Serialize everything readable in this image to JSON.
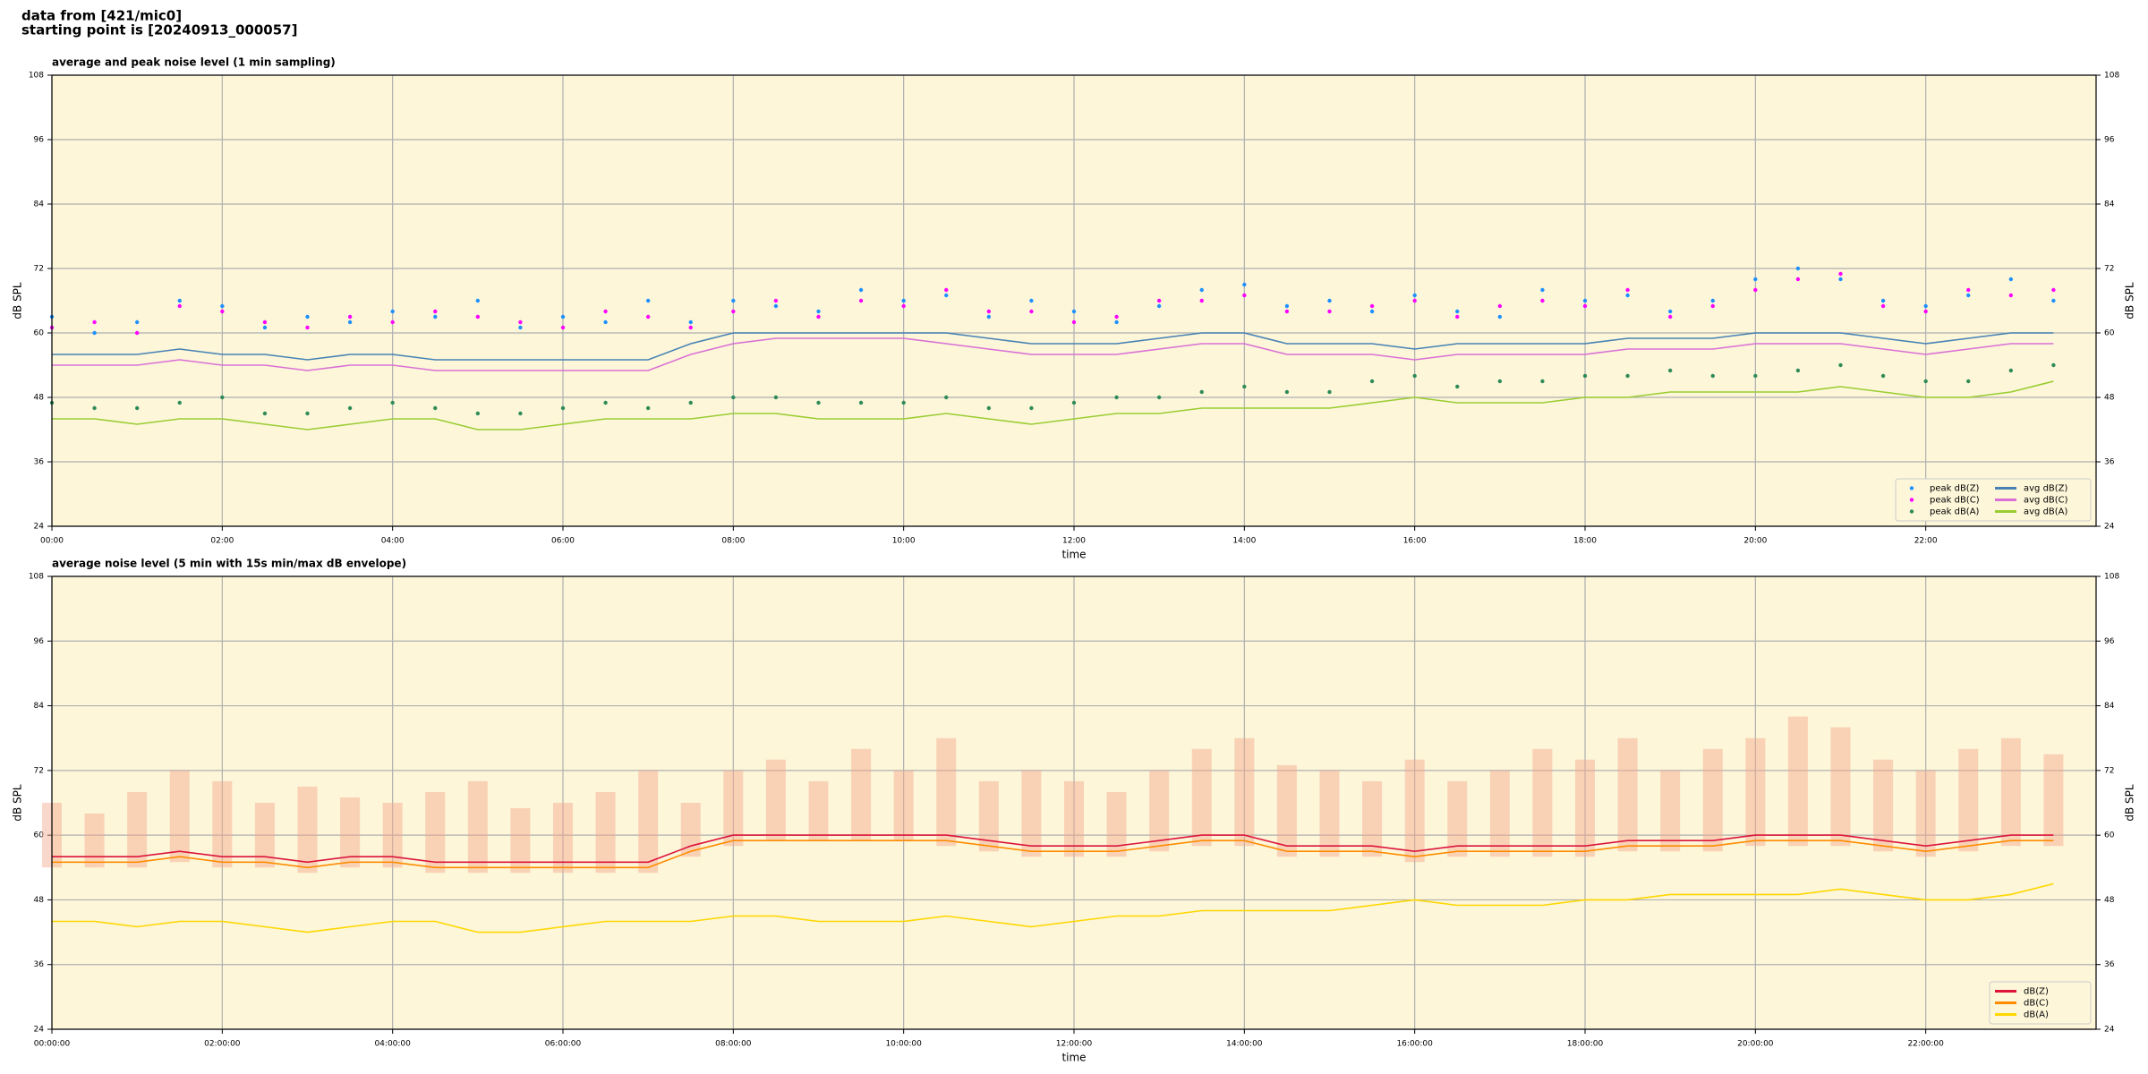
{
  "header": {
    "lines": [
      "data from [421/mic0]",
      "starting point is [20240913_000057]"
    ]
  },
  "chart_data": [
    {
      "type": "line",
      "title": "average and peak noise level (1 min sampling)",
      "xlabel": "time",
      "ylabel": "dB SPL",
      "xlim": [
        0,
        24
      ],
      "ylim": [
        24,
        108
      ],
      "xticks": [
        {
          "value": 0,
          "label": "00:00"
        },
        {
          "value": 2,
          "label": "02:00"
        },
        {
          "value": 4,
          "label": "04:00"
        },
        {
          "value": 6,
          "label": "06:00"
        },
        {
          "value": 8,
          "label": "08:00"
        },
        {
          "value": 10,
          "label": "10:00"
        },
        {
          "value": 12,
          "label": "12:00"
        },
        {
          "value": 14,
          "label": "14:00"
        },
        {
          "value": 16,
          "label": "16:00"
        },
        {
          "value": 18,
          "label": "18:00"
        },
        {
          "value": 20,
          "label": "20:00"
        },
        {
          "value": 22,
          "label": "22:00"
        }
      ],
      "yticks": [
        24,
        36,
        48,
        60,
        72,
        84,
        96,
        108
      ],
      "grid": true,
      "legend": "lower right",
      "legend_columns": 2,
      "background": "#fdf6d9",
      "x": [
        0,
        0.5,
        1,
        1.5,
        2,
        2.5,
        3,
        3.5,
        4,
        4.5,
        5,
        5.5,
        6,
        6.5,
        7,
        7.5,
        8,
        8.5,
        9,
        9.5,
        10,
        10.5,
        11,
        11.5,
        12,
        12.5,
        13,
        13.5,
        14,
        14.5,
        15,
        15.5,
        16,
        16.5,
        17,
        17.5,
        18,
        18.5,
        19,
        19.5,
        20,
        20.5,
        21,
        21.5,
        22,
        22.5,
        23,
        23.5
      ],
      "series": [
        {
          "name": "peak dB(Z)",
          "style": "marker",
          "color": "#1e90ff",
          "values": [
            63,
            60,
            62,
            66,
            65,
            61,
            63,
            62,
            64,
            63,
            66,
            61,
            63,
            62,
            66,
            62,
            66,
            65,
            64,
            68,
            66,
            67,
            63,
            66,
            64,
            62,
            65,
            68,
            69,
            65,
            66,
            64,
            67,
            64,
            63,
            68,
            66,
            67,
            64,
            66,
            70,
            72,
            70,
            66,
            65,
            67,
            70,
            66
          ]
        },
        {
          "name": "peak dB(C)",
          "style": "marker",
          "color": "#ff00ff",
          "values": [
            61,
            62,
            60,
            65,
            64,
            62,
            61,
            63,
            62,
            64,
            63,
            62,
            61,
            64,
            63,
            61,
            64,
            66,
            63,
            66,
            65,
            68,
            64,
            64,
            62,
            63,
            66,
            66,
            67,
            64,
            64,
            65,
            66,
            63,
            65,
            66,
            65,
            68,
            63,
            65,
            68,
            70,
            71,
            65,
            64,
            68,
            67,
            68
          ]
        },
        {
          "name": "peak dB(A)",
          "style": "marker",
          "color": "#2e8b57",
          "values": [
            47,
            46,
            46,
            47,
            48,
            45,
            45,
            46,
            47,
            46,
            45,
            45,
            46,
            47,
            46,
            47,
            48,
            48,
            47,
            47,
            47,
            48,
            46,
            46,
            47,
            48,
            48,
            49,
            50,
            49,
            49,
            51,
            52,
            50,
            51,
            51,
            52,
            52,
            53,
            52,
            52,
            53,
            54,
            52,
            51,
            51,
            53,
            54
          ]
        },
        {
          "name": "avg dB(Z)",
          "style": "line",
          "color": "#4682b4",
          "values": [
            56,
            56,
            56,
            57,
            56,
            56,
            55,
            56,
            56,
            55,
            55,
            55,
            55,
            55,
            55,
            58,
            60,
            60,
            60,
            60,
            60,
            60,
            59,
            58,
            58,
            58,
            59,
            60,
            60,
            58,
            58,
            58,
            57,
            58,
            58,
            58,
            58,
            59,
            59,
            59,
            60,
            60,
            60,
            59,
            58,
            59,
            60,
            60
          ]
        },
        {
          "name": "avg dB(C)",
          "style": "line",
          "color": "#da70d6",
          "values": [
            54,
            54,
            54,
            55,
            54,
            54,
            53,
            54,
            54,
            53,
            53,
            53,
            53,
            53,
            53,
            56,
            58,
            59,
            59,
            59,
            59,
            58,
            57,
            56,
            56,
            56,
            57,
            58,
            58,
            56,
            56,
            56,
            55,
            56,
            56,
            56,
            56,
            57,
            57,
            57,
            58,
            58,
            58,
            57,
            56,
            57,
            58,
            58
          ]
        },
        {
          "name": "avg dB(A)",
          "style": "line",
          "color": "#9acd32",
          "values": [
            44,
            44,
            43,
            44,
            44,
            43,
            42,
            43,
            44,
            44,
            42,
            42,
            43,
            44,
            44,
            44,
            45,
            45,
            44,
            44,
            44,
            45,
            44,
            43,
            44,
            45,
            45,
            46,
            46,
            46,
            46,
            47,
            48,
            47,
            47,
            47,
            48,
            48,
            49,
            49,
            49,
            49,
            50,
            49,
            48,
            48,
            49,
            51
          ]
        }
      ]
    },
    {
      "type": "line",
      "title": "average noise level (5 min with 15s min/max dB envelope)",
      "xlabel": "time",
      "ylabel": "dB SPL",
      "xlim": [
        0,
        24
      ],
      "ylim": [
        24,
        108
      ],
      "xticks": [
        {
          "value": 0,
          "label": "00:00:00"
        },
        {
          "value": 2,
          "label": "02:00:00"
        },
        {
          "value": 4,
          "label": "04:00:00"
        },
        {
          "value": 6,
          "label": "06:00:00"
        },
        {
          "value": 8,
          "label": "08:00:00"
        },
        {
          "value": 10,
          "label": "10:00:00"
        },
        {
          "value": 12,
          "label": "12:00:00"
        },
        {
          "value": 14,
          "label": "14:00:00"
        },
        {
          "value": 16,
          "label": "16:00:00"
        },
        {
          "value": 18,
          "label": "18:00:00"
        },
        {
          "value": 20,
          "label": "20:00:00"
        },
        {
          "value": 22,
          "label": "22:00:00"
        }
      ],
      "yticks": [
        24,
        36,
        48,
        60,
        72,
        84,
        96,
        108
      ],
      "grid": true,
      "legend": "lower right",
      "legend_columns": 1,
      "background": "#fdf6d9",
      "x": [
        0,
        0.5,
        1,
        1.5,
        2,
        2.5,
        3,
        3.5,
        4,
        4.5,
        5,
        5.5,
        6,
        6.5,
        7,
        7.5,
        8,
        8.5,
        9,
        9.5,
        10,
        10.5,
        11,
        11.5,
        12,
        12.5,
        13,
        13.5,
        14,
        14.5,
        15,
        15.5,
        16,
        16.5,
        17,
        17.5,
        18,
        18.5,
        19,
        19.5,
        20,
        20.5,
        21,
        21.5,
        22,
        22.5,
        23,
        23.5
      ],
      "envelope": {
        "color": "#f4a78c",
        "low": [
          54,
          54,
          54,
          55,
          54,
          54,
          53,
          54,
          54,
          53,
          53,
          53,
          53,
          53,
          53,
          56,
          58,
          59,
          59,
          59,
          59,
          58,
          57,
          56,
          56,
          56,
          57,
          58,
          58,
          56,
          56,
          56,
          55,
          56,
          56,
          56,
          56,
          57,
          57,
          57,
          58,
          58,
          58,
          57,
          56,
          57,
          58,
          58
        ],
        "high": [
          66,
          64,
          68,
          72,
          70,
          66,
          69,
          67,
          66,
          68,
          70,
          65,
          66,
          68,
          72,
          66,
          72,
          74,
          70,
          76,
          72,
          78,
          70,
          72,
          70,
          68,
          72,
          76,
          78,
          73,
          72,
          70,
          74,
          70,
          72,
          76,
          74,
          78,
          72,
          76,
          78,
          82,
          80,
          74,
          72,
          76,
          78,
          75
        ]
      },
      "series": [
        {
          "name": "dB(Z)",
          "style": "line",
          "color": "#dc143c",
          "values": [
            56,
            56,
            56,
            57,
            56,
            56,
            55,
            56,
            56,
            55,
            55,
            55,
            55,
            55,
            55,
            58,
            60,
            60,
            60,
            60,
            60,
            60,
            59,
            58,
            58,
            58,
            59,
            60,
            60,
            58,
            58,
            58,
            57,
            58,
            58,
            58,
            58,
            59,
            59,
            59,
            60,
            60,
            60,
            59,
            58,
            59,
            60,
            60
          ]
        },
        {
          "name": "dB(C)",
          "style": "line",
          "color": "#ff8c00",
          "values": [
            55,
            55,
            55,
            56,
            55,
            55,
            54,
            55,
            55,
            54,
            54,
            54,
            54,
            54,
            54,
            57,
            59,
            59,
            59,
            59,
            59,
            59,
            58,
            57,
            57,
            57,
            58,
            59,
            59,
            57,
            57,
            57,
            56,
            57,
            57,
            57,
            57,
            58,
            58,
            58,
            59,
            59,
            59,
            58,
            57,
            58,
            59,
            59
          ]
        },
        {
          "name": "dB(A)",
          "style": "line",
          "color": "#ffd700",
          "values": [
            44,
            44,
            43,
            44,
            44,
            43,
            42,
            43,
            44,
            44,
            42,
            42,
            43,
            44,
            44,
            44,
            45,
            45,
            44,
            44,
            44,
            45,
            44,
            43,
            44,
            45,
            45,
            46,
            46,
            46,
            46,
            47,
            48,
            47,
            47,
            47,
            48,
            48,
            49,
            49,
            49,
            49,
            50,
            49,
            48,
            48,
            49,
            51
          ]
        }
      ]
    }
  ]
}
